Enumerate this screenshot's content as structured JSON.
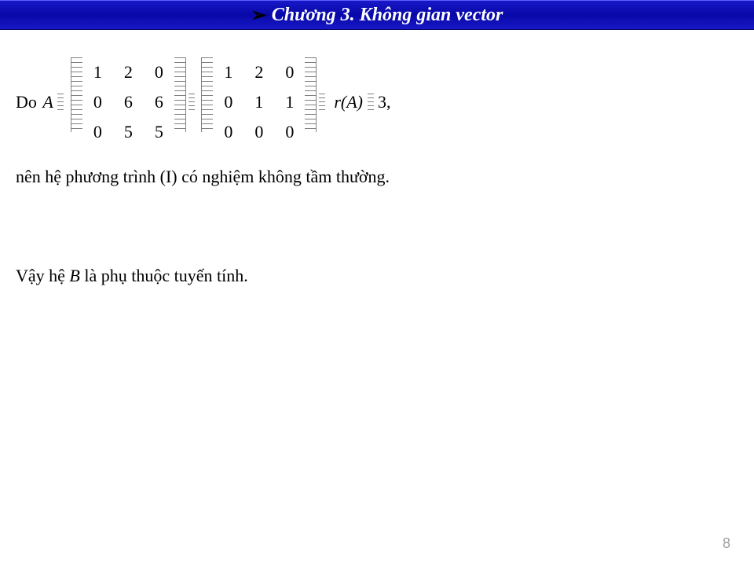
{
  "header": {
    "arrow_glyph": "➢",
    "title": "Chương 3. Không gian vector"
  },
  "eq": {
    "do": "Do",
    "A": "A",
    "arrow": "→",
    "rank_expr": "r(A)",
    "three": "3,",
    "matrix1": [
      [
        "1",
        "2",
        "0"
      ],
      [
        "0",
        "6",
        "6"
      ],
      [
        "0",
        "5",
        "5"
      ]
    ],
    "matrix2": [
      [
        "1",
        "2",
        "0"
      ],
      [
        "0",
        "1",
        "1"
      ],
      [
        "0",
        "0",
        "0"
      ]
    ]
  },
  "para1": "nên hệ phương trình (I) có nghiệm không tầm thường.",
  "para2_pre": "Vậy hệ ",
  "para2_B": "B",
  "para2_post": " là phụ thuộc tuyến tính.",
  "page_number": "8",
  "colors": {
    "header_bg_top": "#1818c8",
    "header_bg_mid": "#0808a8",
    "header_text": "#ffffff",
    "body_text": "#000000",
    "hatch": "#808080",
    "pageno": "#a0a0a0",
    "background": "#ffffff"
  },
  "fonts": {
    "body": "Times New Roman",
    "body_size_pt": 16,
    "header_size_pt": 18,
    "header_weight": "bold",
    "header_style": "italic"
  }
}
